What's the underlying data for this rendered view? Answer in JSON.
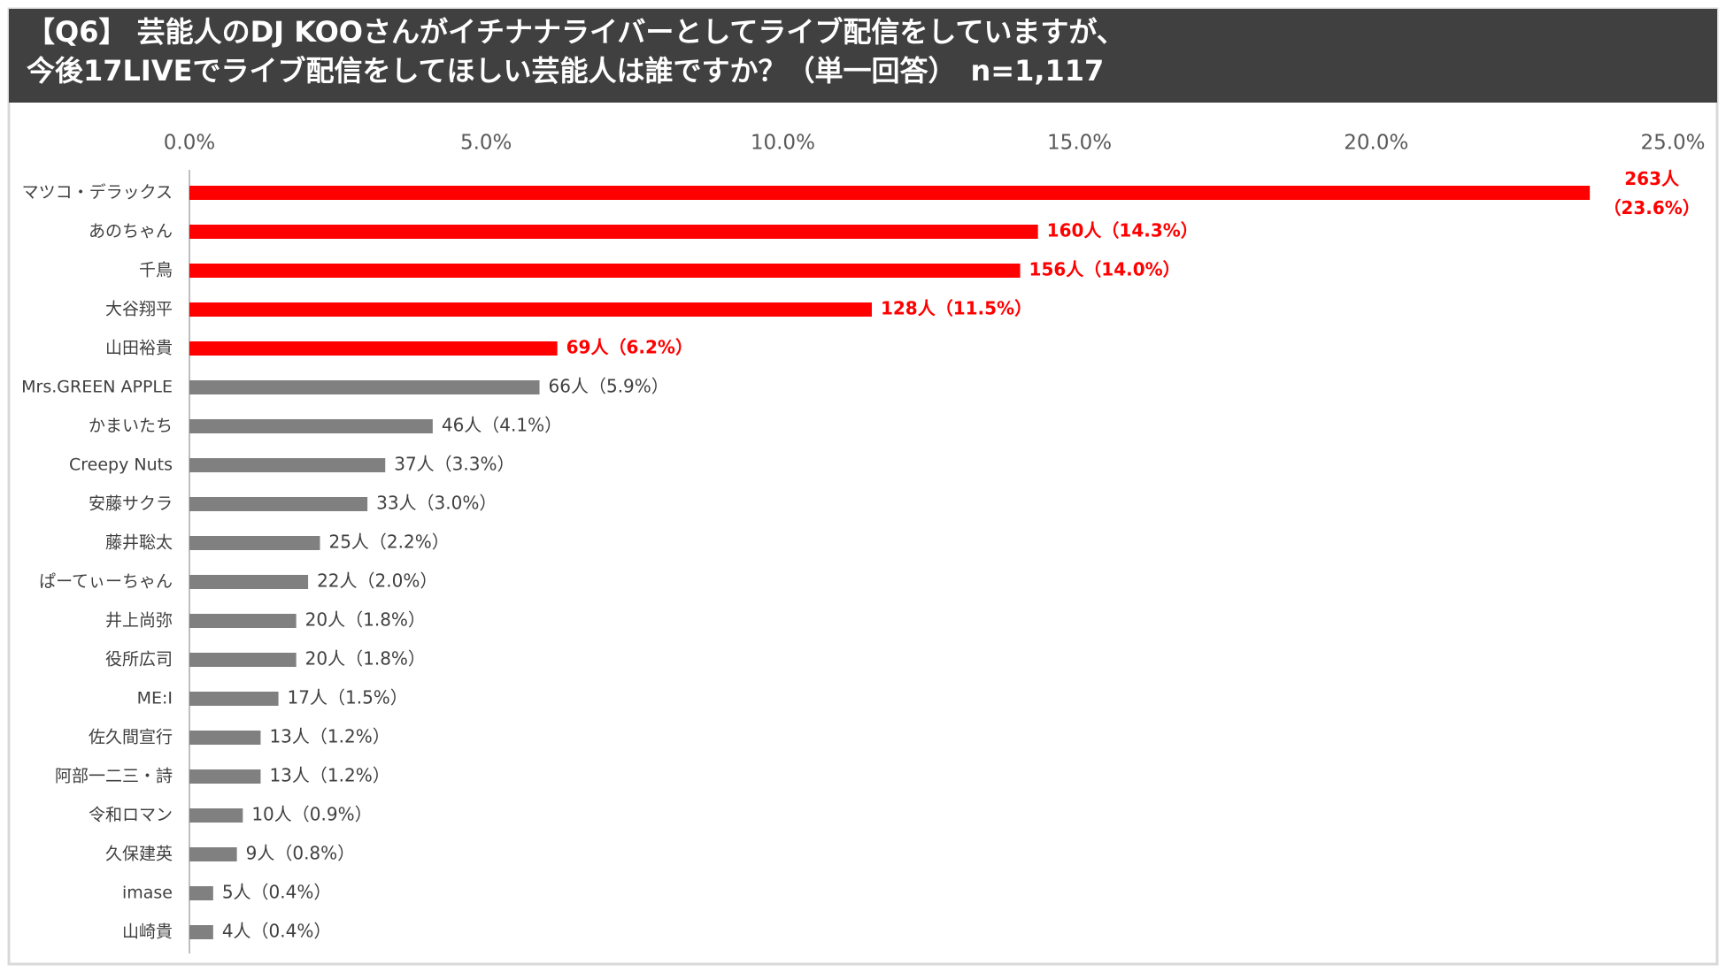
{
  "chart_data": {
    "type": "barh",
    "title": [
      "【Q6】 芸能人のDJ KOOさんがイチナナライバーとしてライブ配信をしていますが、",
      "今後17LIVEでライブ配信をしてほしい芸能人は誰ですか？（単一回答）　n=1,117"
    ],
    "categories": [
      "マツコ・デラックス",
      "あのちゃん",
      "千鳥",
      "大谷翔平",
      "山田裕貴",
      "Mrs.GREEN APPLE",
      "かまいたち",
      "Creepy Nuts",
      "安藤サクラ",
      "藤井聡太",
      "ぱーてぃーちゃん",
      "井上尚弥",
      "役所広司",
      "ME:I",
      "佐久間宣行",
      "阿部一二三・詩",
      "令和ロマン",
      "久保建英",
      "imase",
      "山崎貴"
    ],
    "values": [
      23.6,
      14.3,
      14.0,
      11.5,
      6.2,
      5.9,
      4.1,
      3.3,
      3.0,
      2.2,
      2.0,
      1.8,
      1.8,
      1.5,
      1.2,
      1.2,
      0.9,
      0.8,
      0.4,
      0.4
    ],
    "value_labels": [
      "263人（23.6%）",
      "160人（14.3%）",
      "156人（14.0%）",
      "128人（11.5%）",
      "69人（6.2%）",
      "66人（5.9%）",
      "46人（4.1%）",
      "37人（3.3%）",
      "33人（3.0%）",
      "25人（2.2%）",
      "22人（2.0%）",
      "20人（1.8%）",
      "20人（1.8%）",
      "17人（1.5%）",
      "13人（1.2%）",
      "13人（1.2%）",
      "10人（0.9%）",
      "9人（0.8%）",
      "5人（0.4%）",
      "4人（0.4%）"
    ],
    "colors": [
      "#ff0000",
      "#ff0000",
      "#ff0000",
      "#ff0000",
      "#ff0000",
      "#808080",
      "#808080",
      "#808080",
      "#808080",
      "#808080",
      "#808080",
      "#808080",
      "#808080",
      "#808080",
      "#808080",
      "#808080",
      "#808080",
      "#808080",
      "#808080",
      "#808080"
    ],
    "xlim": [
      0,
      25
    ],
    "xticks": [
      {
        "value": 0,
        "label": "0.0%"
      },
      {
        "value": 5,
        "label": "5.0%"
      },
      {
        "value": 10,
        "label": "10.0%"
      },
      {
        "value": 15,
        "label": "15.0%"
      },
      {
        "value": 20,
        "label": "20.0%"
      },
      {
        "value": 25,
        "label": "25.0%"
      }
    ]
  }
}
